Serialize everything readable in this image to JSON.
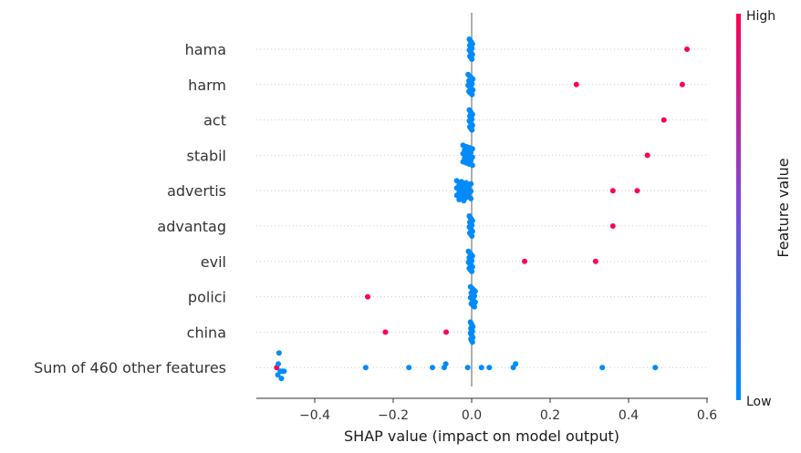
{
  "chart_data": {
    "type": "scatter",
    "subtype": "shap-beeswarm",
    "xlabel": "SHAP value (impact on model output)",
    "xlim": [
      -0.55,
      0.6
    ],
    "xticks": [
      -0.4,
      -0.2,
      0.0,
      0.2,
      0.4,
      0.6
    ],
    "xtick_labels": [
      "−0.4",
      "−0.2",
      "0.0",
      "0.2",
      "0.4",
      "0.6"
    ],
    "grid": false,
    "colorbar": {
      "label": "Feature value",
      "high_label": "High",
      "low_label": "Low",
      "high_color": "#ff0052",
      "low_color": "#008bfb"
    },
    "colors": {
      "low": "#008bfb",
      "high": "#ff0052",
      "zero_line": "#999999",
      "row_line": "#cccccc"
    },
    "features": [
      {
        "name": "hama",
        "points": [
          {
            "x": 0.549,
            "high": true
          }
        ],
        "low_cluster": {
          "center": -0.002,
          "spread": 0.004,
          "count": 14
        }
      },
      {
        "name": "harm",
        "points": [
          {
            "x": 0.267,
            "high": true
          },
          {
            "x": 0.537,
            "high": true
          }
        ],
        "low_cluster": {
          "center": -0.003,
          "spread": 0.006,
          "count": 14
        }
      },
      {
        "name": "act",
        "points": [
          {
            "x": 0.49,
            "high": true
          }
        ],
        "low_cluster": {
          "center": -0.002,
          "spread": 0.004,
          "count": 14
        }
      },
      {
        "name": "stabil",
        "points": [
          {
            "x": 0.448,
            "high": true
          }
        ],
        "low_cluster": {
          "center": -0.01,
          "spread": 0.012,
          "count": 18
        }
      },
      {
        "name": "advertis",
        "points": [
          {
            "x": 0.36,
            "high": true
          },
          {
            "x": 0.422,
            "high": true
          }
        ],
        "low_cluster": {
          "center": -0.02,
          "spread": 0.018,
          "count": 20
        }
      },
      {
        "name": "advantag",
        "points": [
          {
            "x": 0.36,
            "high": true
          }
        ],
        "low_cluster": {
          "center": -0.002,
          "spread": 0.004,
          "count": 14
        }
      },
      {
        "name": "evil",
        "points": [
          {
            "x": 0.135,
            "high": true
          },
          {
            "x": 0.316,
            "high": true
          }
        ],
        "low_cluster": {
          "center": -0.003,
          "spread": 0.005,
          "count": 14
        }
      },
      {
        "name": "polici",
        "points": [
          {
            "x": -0.265,
            "high": true
          }
        ],
        "low_cluster": {
          "center": 0.003,
          "spread": 0.006,
          "count": 14
        }
      },
      {
        "name": "china",
        "points": [
          {
            "x": -0.22,
            "high": true
          },
          {
            "x": -0.065,
            "high": true
          }
        ],
        "low_cluster": {
          "center": 0.0,
          "spread": 0.003,
          "count": 14
        }
      },
      {
        "name": "Sum of 460 other features",
        "points": [
          {
            "x": -0.497,
            "high": true
          },
          {
            "x": -0.493,
            "high": false
          },
          {
            "x": -0.488,
            "high": false
          },
          {
            "x": -0.483,
            "high": false
          },
          {
            "x": -0.478,
            "high": false
          },
          {
            "x": -0.494,
            "high": false
          },
          {
            "x": -0.485,
            "high": false
          },
          {
            "x": -0.491,
            "high": false
          },
          {
            "x": -0.27,
            "high": false
          },
          {
            "x": -0.16,
            "high": false
          },
          {
            "x": -0.1,
            "high": false
          },
          {
            "x": -0.07,
            "high": false
          },
          {
            "x": -0.066,
            "high": false
          },
          {
            "x": -0.01,
            "high": false
          },
          {
            "x": 0.025,
            "high": false
          },
          {
            "x": 0.045,
            "high": false
          },
          {
            "x": 0.106,
            "high": false
          },
          {
            "x": 0.112,
            "high": false
          },
          {
            "x": 0.333,
            "high": false
          },
          {
            "x": 0.468,
            "high": false
          }
        ],
        "low_cluster": null
      }
    ]
  }
}
